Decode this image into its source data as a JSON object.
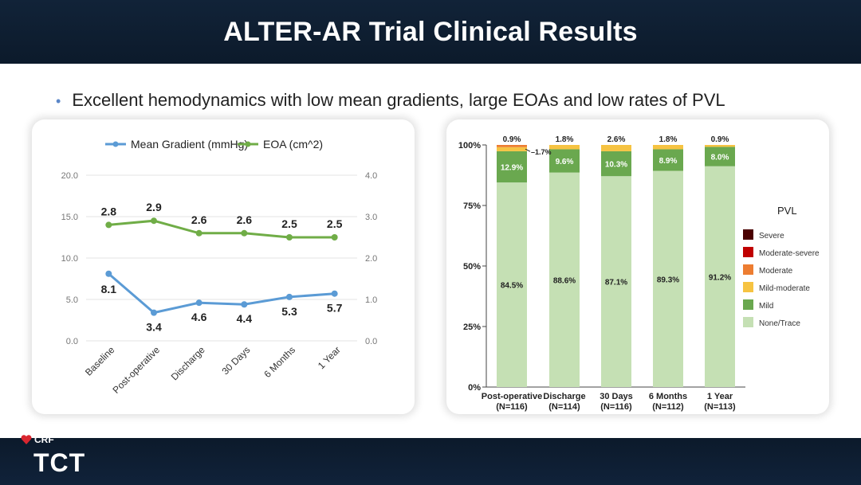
{
  "slide": {
    "title": "ALTER-AR Trial Clinical Results",
    "bullet": "Excellent hemodynamics with low mean gradients, large EOAs and low rates of PVL"
  },
  "brand": {
    "crf": "CRF",
    "tct": "TCT"
  },
  "colors": {
    "header_bg": "#0e1e31",
    "gradient_line": "#5b9bd5",
    "eoa_line": "#70ad47",
    "bullet": "#5a86c8"
  },
  "chart_data": [
    {
      "type": "line",
      "legend": [
        "Mean Gradient (mmHg)",
        "EOA (cm^2)"
      ],
      "categories": [
        "Baseline",
        "Post-operative",
        "Discharge",
        "30 Days",
        "6 Months",
        "1 Year"
      ],
      "series": [
        {
          "name": "Mean Gradient (mmHg)",
          "axis": "left",
          "values": [
            8.1,
            3.4,
            4.6,
            4.4,
            5.3,
            5.7
          ],
          "labels": [
            "8.1",
            "3.4",
            "4.6",
            "4.4",
            "5.3",
            "5.7"
          ],
          "color": "#5b9bd5"
        },
        {
          "name": "EOA (cm^2)",
          "axis": "right",
          "values": [
            2.8,
            2.9,
            2.6,
            2.6,
            2.5,
            2.5
          ],
          "labels": [
            "2.8",
            "2.9",
            "2.6",
            "2.6",
            "2.5",
            "2.5"
          ],
          "color": "#70ad47"
        }
      ],
      "ylim_left": [
        0,
        20
      ],
      "ylim_right": [
        0,
        4
      ],
      "left_ticks": [
        "0.0",
        "5.0",
        "10.0",
        "15.0",
        "20.0"
      ],
      "right_ticks": [
        "0.0",
        "1.0",
        "2.0",
        "3.0",
        "4.0"
      ],
      "grid": true
    },
    {
      "type": "bar",
      "stacked": true,
      "legend_title": "PVL",
      "categories": [
        "Post-operative",
        "Discharge",
        "30 Days",
        "6 Months",
        "1 Year"
      ],
      "category_n": [
        "(N=116)",
        "(N=114)",
        "(N=116)",
        "(N=112)",
        "(N=113)"
      ],
      "series": [
        {
          "name": "None/Trace",
          "values": [
            84.5,
            88.6,
            87.1,
            89.3,
            91.2
          ],
          "labels": [
            "84.5%",
            "88.6%",
            "87.1%",
            "89.3%",
            "91.2%"
          ],
          "color": "#c5e0b4"
        },
        {
          "name": "Mild",
          "values": [
            12.9,
            9.6,
            10.3,
            8.9,
            8.0
          ],
          "labels": [
            "12.9%",
            "9.6%",
            "10.3%",
            "8.9%",
            "8.0%"
          ],
          "color": "#6aa84f"
        },
        {
          "name": "Mild-moderate",
          "values": [
            1.7,
            1.8,
            2.6,
            1.8,
            0.9
          ],
          "color": "#f6c342"
        },
        {
          "name": "Moderate",
          "values": [
            0.9,
            0,
            0,
            0,
            0
          ],
          "color": "#ed7d31"
        },
        {
          "name": "Moderate-severe",
          "values": [
            0,
            0,
            0,
            0,
            0
          ],
          "color": "#c00000"
        },
        {
          "name": "Severe",
          "values": [
            0,
            0,
            0,
            0,
            0
          ],
          "color": "#4a0000"
        }
      ],
      "top_labels": [
        "0.9%",
        "1.8%",
        "2.6%",
        "1.8%",
        "0.9%"
      ],
      "callout_label": "1.7%",
      "y_ticks": [
        "0%",
        "25%",
        "50%",
        "75%",
        "100%"
      ],
      "ylim": [
        0,
        100
      ]
    }
  ]
}
